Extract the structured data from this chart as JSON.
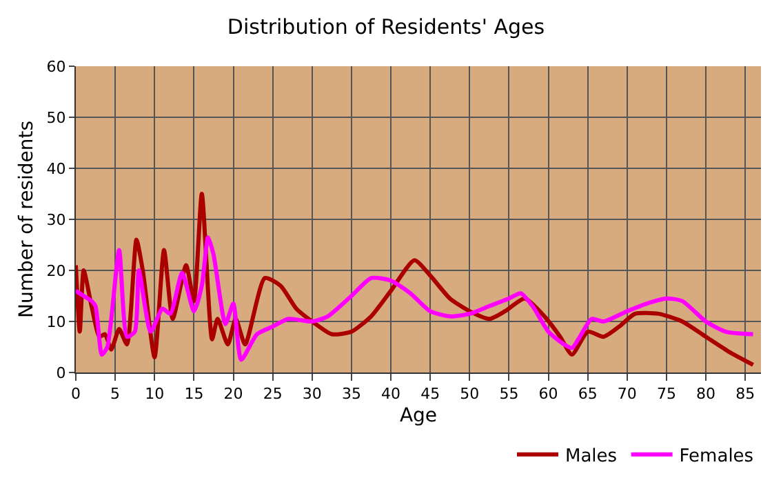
{
  "chart_data": {
    "type": "line",
    "title": "Distribution of Residents' Ages",
    "xlabel": "Age",
    "ylabel": "Number of residents",
    "xlim": [
      0,
      87
    ],
    "xticks": [
      0,
      5,
      10,
      15,
      20,
      25,
      30,
      35,
      40,
      45,
      50,
      55,
      60,
      65,
      70,
      75,
      80,
      85
    ],
    "ylim": [
      0,
      60
    ],
    "yticks": [
      0,
      10,
      20,
      30,
      40,
      50,
      60
    ],
    "grid": true,
    "legend": "bottom right",
    "marker": "none",
    "line_style": "solid",
    "series": [
      {
        "name": "Males",
        "color": "#aa0000",
        "x": [
          0,
          0.5,
          1,
          2,
          3,
          3.7,
          4.5,
          5.5,
          6.5,
          7.7,
          8.5,
          10,
          11.2,
          12.3,
          14,
          15,
          16,
          17.3,
          18,
          19.3,
          20.3,
          21.5,
          24,
          26,
          28,
          30,
          32.5,
          35,
          37.5,
          40,
          43,
          45,
          47.5,
          50,
          52.5,
          54.5,
          57,
          59.5,
          61.5,
          63,
          65,
          67,
          69,
          71,
          74,
          77,
          80,
          83,
          86
        ],
        "values": [
          21,
          8,
          20,
          13,
          7,
          7.5,
          4.5,
          8.5,
          5.5,
          26,
          20,
          3,
          24,
          10.5,
          21,
          14,
          35,
          6.5,
          10.5,
          5.5,
          10.5,
          5.5,
          18.5,
          17,
          12.5,
          10,
          7.5,
          8,
          11,
          16,
          22,
          19,
          14.5,
          12,
          10.5,
          12,
          14.5,
          11,
          7,
          3.5,
          8,
          7,
          9,
          11.5,
          11.5,
          10,
          7,
          4,
          1.5
        ]
      },
      {
        "name": "Females",
        "color": "#ff00ff",
        "x": [
          0,
          1,
          2,
          2.5,
          3.3,
          4,
          5.5,
          6.5,
          7.5,
          8,
          9.5,
          11,
          12,
          13.5,
          15,
          16,
          16.8,
          17.5,
          19,
          20,
          21,
          23,
          25,
          27,
          30,
          32,
          35,
          37.5,
          40,
          42.5,
          45,
          47.5,
          50,
          52.5,
          55,
          56.5,
          58,
          60,
          62,
          63,
          64,
          65.5,
          67,
          70,
          72.5,
          75,
          77,
          80,
          82.5,
          86
        ],
        "values": [
          16,
          15,
          14,
          13,
          3.5,
          5,
          24,
          7,
          8,
          20,
          8,
          12.5,
          11.5,
          19.5,
          12,
          17,
          26.5,
          23,
          9.5,
          13.5,
          2.5,
          7.5,
          9,
          10.5,
          10,
          11,
          15,
          18.5,
          18,
          15.5,
          12,
          11,
          11.5,
          13,
          14.5,
          15.5,
          13,
          8,
          5.5,
          4.8,
          7,
          10.5,
          10,
          12,
          13.5,
          14.5,
          14,
          10,
          8,
          7.5
        ]
      }
    ]
  }
}
